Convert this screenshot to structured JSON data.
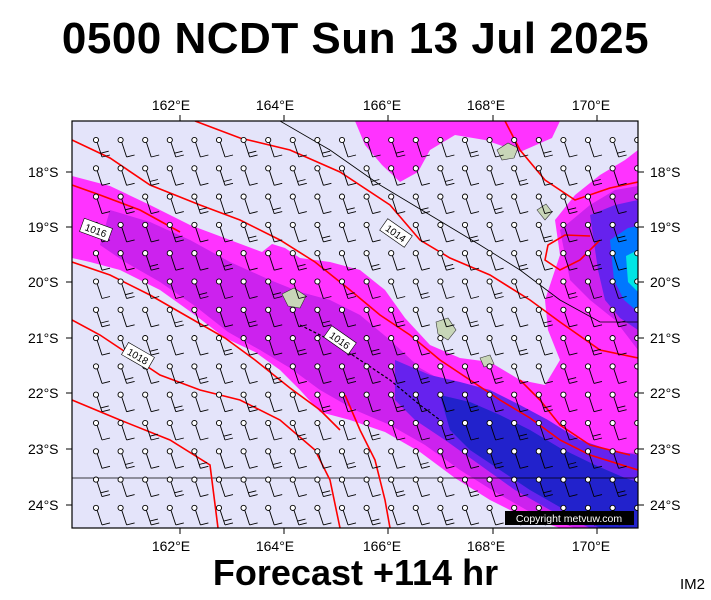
{
  "header": {
    "title": "0500 NCDT Sun 13 Jul 2025"
  },
  "footer": {
    "forecast": "Forecast +114 hr",
    "corner_label": "IM2"
  },
  "map": {
    "lon_ticks": [
      "162°E",
      "164°E",
      "166°E",
      "168°E",
      "170°E"
    ],
    "lat_ticks": [
      "18°S",
      "19°S",
      "20°S",
      "21°S",
      "22°S",
      "23°S",
      "24°S"
    ],
    "isobar_labels": [
      "1016",
      "1014",
      "1016",
      "1018"
    ],
    "copyright": "Copyright metvuw.com",
    "colors": {
      "background": "#e4e4fa",
      "precip_light": "#ff33ff",
      "precip_mid": "#cc22ee",
      "precip_heavy": "#6622ee",
      "precip_very_heavy": "#2222cc",
      "precip_extreme": "#0077ff",
      "precip_peak": "#00e5e5",
      "isobar": "#ff0000",
      "land": "#c8d6b8"
    },
    "icons": [
      "wind-barb-icon",
      "station-circle-icon"
    ]
  }
}
